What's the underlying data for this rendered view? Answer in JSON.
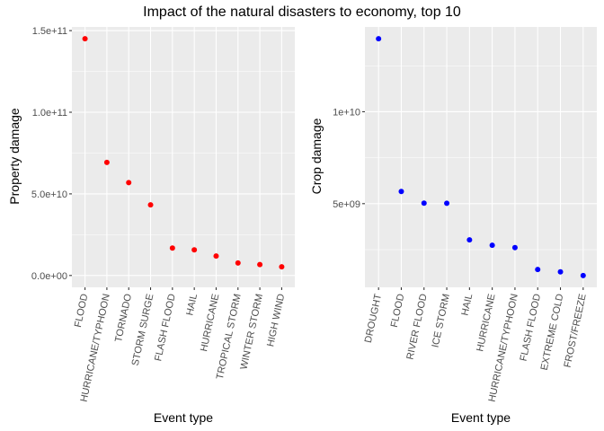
{
  "title": "Impact of the natural disasters to economy, top 10",
  "chart_data": [
    {
      "type": "scatter",
      "xlabel": "Event type",
      "ylabel": "Property damage",
      "color": "#ff0000",
      "categories": [
        "FLOOD",
        "HURRICANE/TYPHOON",
        "TORNADO",
        "STORM SURGE",
        "FLASH FLOOD",
        "HAIL",
        "HURRICANE",
        "TROPICAL STORM",
        "WINTER STORM",
        "HIGH WIND"
      ],
      "values": [
        145000000000,
        69300000000,
        56900000000,
        43300000000,
        16800000000,
        15700000000,
        11900000000,
        7700000000,
        6700000000,
        5300000000
      ],
      "yticks": [
        0,
        50000000000,
        100000000000,
        150000000000
      ],
      "ytick_labels": [
        "0.0e+00",
        "5.0e+10",
        "1.0e+11",
        "1.5e+11"
      ],
      "ylim": [
        -7250000000,
        152250000000
      ],
      "grid": true
    },
    {
      "type": "scatter",
      "xlabel": "Event type",
      "ylabel": "Crop damage",
      "color": "#0000ff",
      "categories": [
        "DROUGHT",
        "FLOOD",
        "RIVER FLOOD",
        "ICE STORM",
        "HAIL",
        "HURRICANE",
        "HURRICANE/TYPHOON",
        "FLASH FLOOD",
        "EXTREME COLD",
        "FROST/FREEZE"
      ],
      "values": [
        13970000000,
        5660000000,
        5030000000,
        5020000000,
        3030000000,
        2740000000,
        2610000000,
        1420000000,
        1290000000,
        1090000000
      ],
      "yticks": [
        5000000000,
        10000000000
      ],
      "ytick_labels": [
        "5e+09",
        "1e+10"
      ],
      "ylim": [
        450000000,
        14610000000
      ],
      "grid": true
    }
  ]
}
